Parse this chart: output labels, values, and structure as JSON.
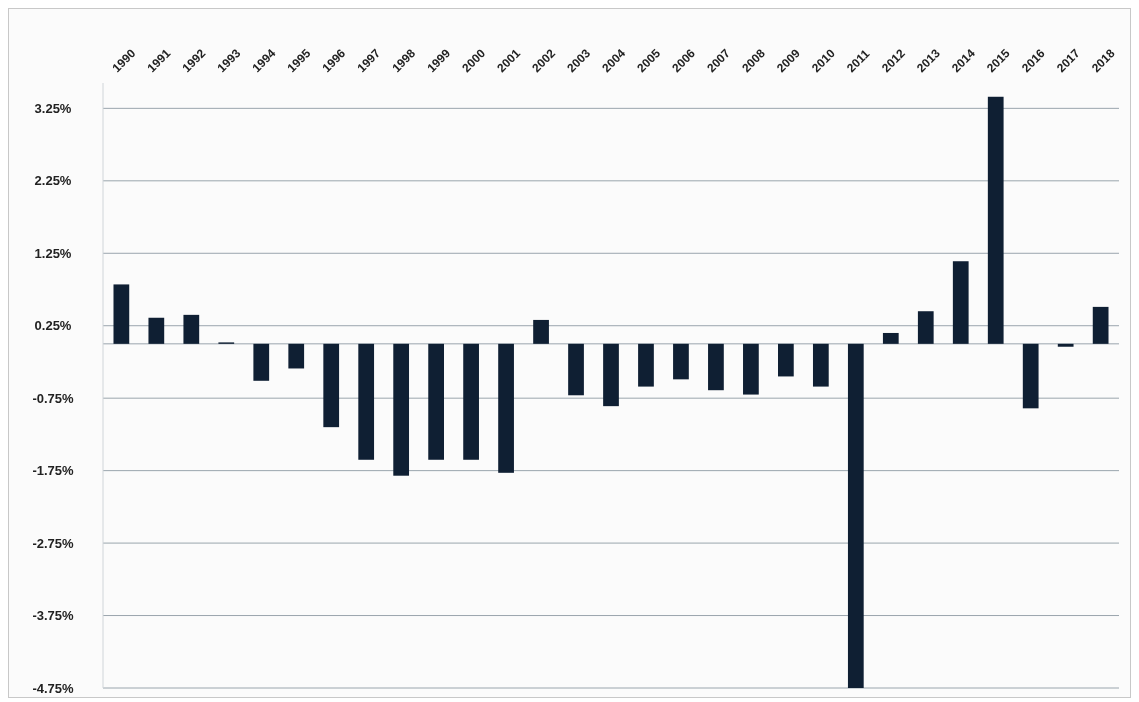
{
  "chart_data": {
    "type": "bar",
    "categories": [
      "1990",
      "1991",
      "1992",
      "1993",
      "1994",
      "1995",
      "1996",
      "1997",
      "1998",
      "1999",
      "2000",
      "2001",
      "2002",
      "2003",
      "2004",
      "2005",
      "2006",
      "2007",
      "2008",
      "2009",
      "2010",
      "2011",
      "2012",
      "2013",
      "2014",
      "2015",
      "2016",
      "2017",
      "2018"
    ],
    "values": [
      0.82,
      0.36,
      0.4,
      0.02,
      -0.51,
      -0.34,
      -1.15,
      -1.6,
      -1.82,
      -1.6,
      -1.6,
      -1.78,
      0.33,
      -0.71,
      -0.86,
      -0.59,
      -0.49,
      -0.64,
      -0.7,
      -0.45,
      -0.59,
      -4.75,
      0.15,
      0.45,
      1.14,
      3.41,
      -0.89,
      -0.04,
      0.51
    ],
    "color": "#0f1f33",
    "ylim": [
      -4.75,
      3.6
    ],
    "yticks": [
      {
        "value": -4.75,
        "label": "-4.75%"
      },
      {
        "value": -3.75,
        "label": "-3.75%"
      },
      {
        "value": -2.75,
        "label": "-2.75%"
      },
      {
        "value": -1.75,
        "label": "-1.75%"
      },
      {
        "value": -0.75,
        "label": "-0.75%"
      },
      {
        "value": 0.25,
        "label": "0.25%"
      },
      {
        "value": 1.25,
        "label": "1.25%"
      },
      {
        "value": 2.25,
        "label": "2.25%"
      },
      {
        "value": 3.25,
        "label": "3.25%"
      }
    ],
    "grid": "y"
  }
}
